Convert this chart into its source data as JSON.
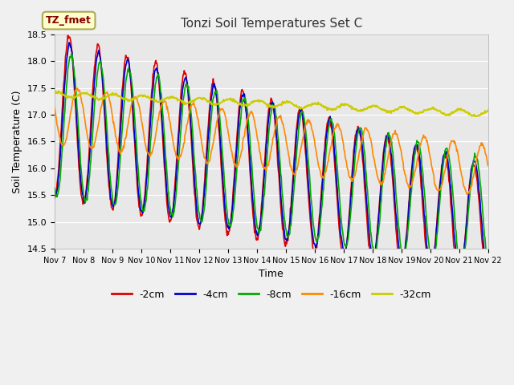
{
  "title": "Tonzi Soil Temperatures Set C",
  "xlabel": "Time",
  "ylabel": "Soil Temperature (C)",
  "ylim": [
    14.5,
    18.5
  ],
  "x_tick_labels": [
    "Nov 7",
    "Nov 8",
    "Nov 9",
    "Nov 10",
    "Nov 11",
    "Nov 12",
    "Nov 13",
    "Nov 14",
    "Nov 15",
    "Nov 16",
    "Nov 17",
    "Nov 18",
    "Nov 19",
    "Nov 20",
    "Nov 21",
    "Nov 22"
  ],
  "bg_color": "#e8e8e8",
  "series_colors": {
    "-2cm": "#dd0000",
    "-4cm": "#0000cc",
    "-8cm": "#00aa00",
    "-16cm": "#ff8800",
    "-32cm": "#cccc00"
  },
  "legend_label": "TZ_fmet",
  "legend_bg": "#ffffcc",
  "legend_border": "#aaaa55"
}
